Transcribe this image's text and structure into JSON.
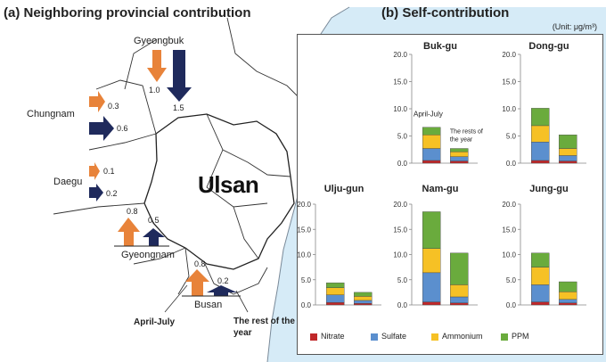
{
  "left_title": "(a) Neighboring provincial contribution",
  "right_title": "(b) Self-contribution",
  "unit": "(Unit: μg/m³)",
  "city_label": "Ulsan",
  "period_labels": {
    "april_july": "April-July",
    "rest": "The rest of the year"
  },
  "colors": {
    "april_july": "#e8833a",
    "rest": "#1f2a5c",
    "sea": "#d6ebf7",
    "nitrate": "#c0282a",
    "sulfate": "#5b8fce",
    "ammonium": "#f6c125",
    "ppm": "#6aab3d"
  },
  "provinces": [
    {
      "name": "Gyeongbuk",
      "april_july": "1.0",
      "rest": "1.5"
    },
    {
      "name": "Chungnam",
      "april_july": "0.3",
      "rest": "0.6"
    },
    {
      "name": "Daegu",
      "april_july": "0.1",
      "rest": "0.2"
    },
    {
      "name": "Gyeongnam",
      "april_july": "0.8",
      "rest": "0.5"
    },
    {
      "name": "Busan",
      "april_july": "0.8",
      "rest": "0.2"
    }
  ],
  "chart_data": [
    {
      "type": "bar",
      "stacked": true,
      "title": "Buk-gu",
      "categories": [
        "April-July",
        "The rests of the year"
      ],
      "ylim": [
        0,
        20
      ],
      "yticks": [
        "0.0",
        "5.0",
        "10.0",
        "15.0",
        "20.0"
      ],
      "series": [
        {
          "name": "Nitrate",
          "values": [
            0.5,
            0.4
          ]
        },
        {
          "name": "Sulfate",
          "values": [
            2.2,
            0.8
          ]
        },
        {
          "name": "Ammonium",
          "values": [
            2.5,
            0.9
          ]
        },
        {
          "name": "PPM",
          "values": [
            1.4,
            0.6
          ]
        }
      ]
    },
    {
      "type": "bar",
      "stacked": true,
      "title": "Dong-gu",
      "categories": [
        "April-July",
        "The rest of the year"
      ],
      "ylim": [
        0,
        20
      ],
      "yticks": [
        "0.0",
        "5.0",
        "10.0",
        "15.0",
        "20.0"
      ],
      "series": [
        {
          "name": "Nitrate",
          "values": [
            0.5,
            0.4
          ]
        },
        {
          "name": "Sulfate",
          "values": [
            3.4,
            1.0
          ]
        },
        {
          "name": "Ammonium",
          "values": [
            3.0,
            1.3
          ]
        },
        {
          "name": "PPM",
          "values": [
            3.2,
            2.5
          ]
        }
      ]
    },
    {
      "type": "bar",
      "stacked": true,
      "title": "Ulju-gun",
      "categories": [
        "April-July",
        "The rest of the year"
      ],
      "ylim": [
        0,
        20
      ],
      "yticks": [
        "0.0",
        "5.0",
        "10.0",
        "15.0",
        "20.0"
      ],
      "series": [
        {
          "name": "Nitrate",
          "values": [
            0.5,
            0.3
          ]
        },
        {
          "name": "Sulfate",
          "values": [
            1.5,
            0.6
          ]
        },
        {
          "name": "Ammonium",
          "values": [
            1.4,
            0.8
          ]
        },
        {
          "name": "PPM",
          "values": [
            1.0,
            0.8
          ]
        }
      ]
    },
    {
      "type": "bar",
      "stacked": true,
      "title": "Nam-gu",
      "categories": [
        "April-July",
        "The rest of the year"
      ],
      "ylim": [
        0,
        20
      ],
      "yticks": [
        "0.0",
        "5.0",
        "10.0",
        "15.0",
        "20.0"
      ],
      "series": [
        {
          "name": "Nitrate",
          "values": [
            0.6,
            0.4
          ]
        },
        {
          "name": "Sulfate",
          "values": [
            5.8,
            1.2
          ]
        },
        {
          "name": "Ammonium",
          "values": [
            4.8,
            2.4
          ]
        },
        {
          "name": "PPM",
          "values": [
            7.3,
            6.3
          ]
        }
      ]
    },
    {
      "type": "bar",
      "stacked": true,
      "title": "Jung-gu",
      "categories": [
        "April-July",
        "The rest of the year"
      ],
      "ylim": [
        0,
        20
      ],
      "yticks": [
        "0.0",
        "5.0",
        "10.0",
        "15.0",
        "20.0"
      ],
      "series": [
        {
          "name": "Nitrate",
          "values": [
            0.6,
            0.4
          ]
        },
        {
          "name": "Sulfate",
          "values": [
            3.4,
            0.7
          ]
        },
        {
          "name": "Ammonium",
          "values": [
            3.5,
            1.5
          ]
        },
        {
          "name": "PPM",
          "values": [
            2.8,
            2.0
          ]
        }
      ]
    }
  ],
  "legend": [
    "Nitrate",
    "Sulfate",
    "Ammonium",
    "PPM"
  ]
}
